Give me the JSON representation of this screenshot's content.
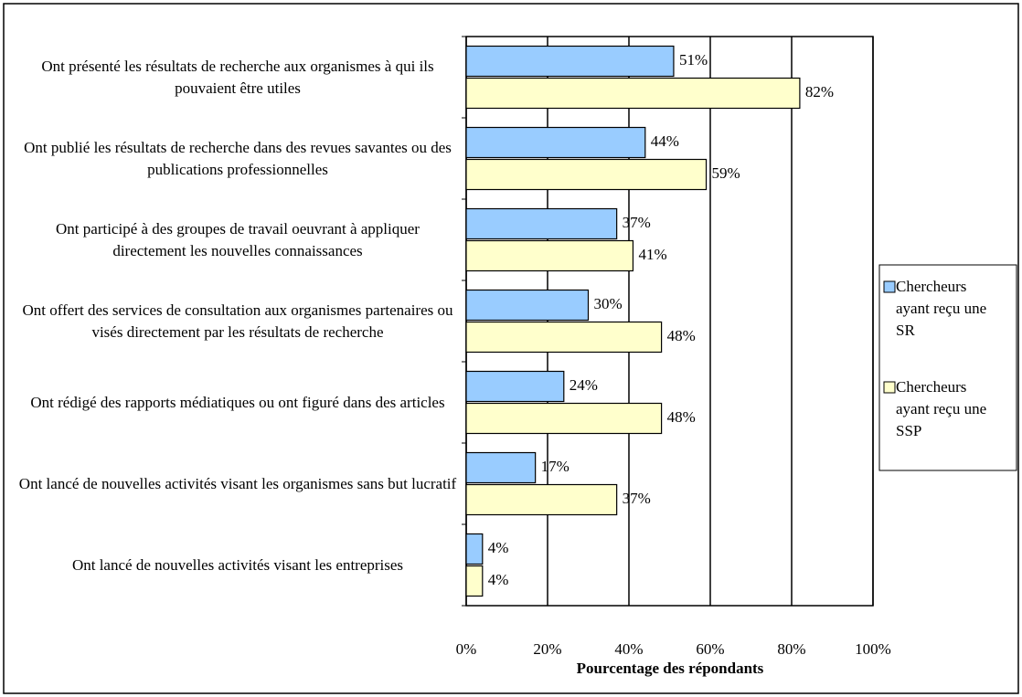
{
  "chart_data": {
    "type": "bar",
    "orientation": "horizontal",
    "x_label": "Pourcentage des répondants",
    "categories": [
      "Ont présenté les résultats de recherche aux organismes à qui ils pouvaient être utiles",
      "Ont publié les résultats de recherche dans des revues savantes ou des publications professionnelles",
      "Ont participé à des groupes de travail oeuvrant à appliquer directement les nouvelles connaissances",
      "Ont offert des services de consultation aux organismes partenaires ou visés directement par les résultats de recherche",
      "Ont rédigé des rapports médiatiques ou ont figuré dans des articles",
      "Ont lancé de nouvelles activités visant les organismes sans but lucratif",
      "Ont lancé de nouvelles activités visant les entreprises"
    ],
    "series": [
      {
        "name": "Chercheurs ayant reçu une SR",
        "color": "#99ccff",
        "values": [
          51,
          44,
          37,
          30,
          24,
          17,
          4
        ],
        "value_labels": [
          "51%",
          "44%",
          "37%",
          "30%",
          "24%",
          "17%",
          "4%"
        ]
      },
      {
        "name": "Chercheurs ayant reçu une SSP",
        "color": "#ffffcc",
        "values": [
          82,
          59,
          41,
          48,
          48,
          37,
          4
        ],
        "value_labels": [
          "82%",
          "59%",
          "41%",
          "48%",
          "48%",
          "37%",
          "4%"
        ]
      }
    ],
    "xlim": [
      0,
      100
    ],
    "xticks": [
      {
        "value": 0,
        "label": "0%"
      },
      {
        "value": 20,
        "label": "20%"
      },
      {
        "value": 40,
        "label": "40%"
      },
      {
        "value": 60,
        "label": "60%"
      },
      {
        "value": 80,
        "label": "80%"
      },
      {
        "value": 100,
        "label": "100%"
      }
    ],
    "grid": true,
    "legend": "right"
  }
}
